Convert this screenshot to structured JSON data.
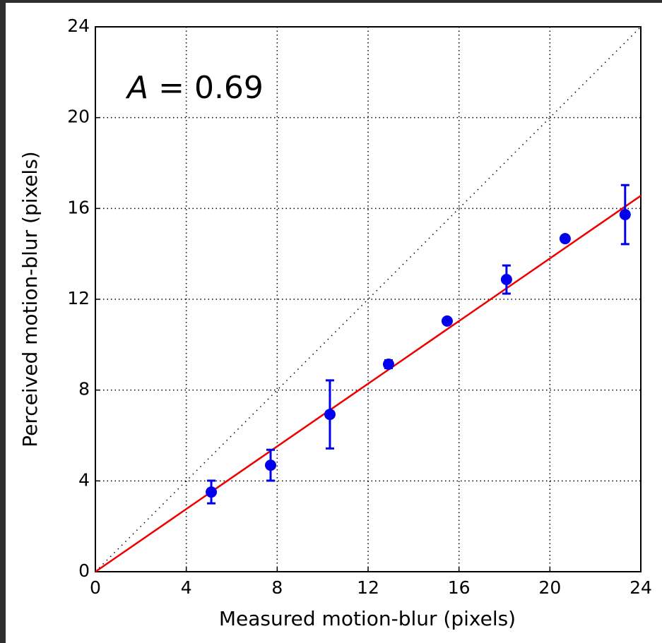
{
  "chart_data": {
    "type": "scatter",
    "xlabel": "Measured motion-blur (pixels)",
    "ylabel": "Perceived motion-blur (pixels)",
    "annotation": [
      "A",
      " = 0.69"
    ],
    "xlim": [
      0,
      24
    ],
    "ylim": [
      0,
      24
    ],
    "xticks": [
      0,
      4,
      8,
      12,
      16,
      20,
      24
    ],
    "yticks": [
      0,
      4,
      8,
      12,
      16,
      20,
      24
    ],
    "grid": true,
    "series": [
      {
        "type": "scatter",
        "color": "#0000ee",
        "x": [
          5.1,
          7.71,
          10.32,
          12.9,
          15.48,
          18.09,
          20.67,
          23.31
        ],
        "values": [
          3.51,
          4.69,
          6.93,
          9.14,
          11.04,
          12.87,
          14.67,
          15.73
        ],
        "errors": [
          0.5,
          0.68,
          1.5,
          0.17,
          0.1,
          0.62,
          0.1,
          1.3
        ]
      },
      {
        "type": "line",
        "color": "#ee0000",
        "x": [
          0,
          24
        ],
        "values": [
          0,
          16.56
        ]
      },
      {
        "type": "dotted",
        "color": "#000000",
        "x": [
          0,
          24
        ],
        "values": [
          0,
          24
        ]
      }
    ]
  }
}
